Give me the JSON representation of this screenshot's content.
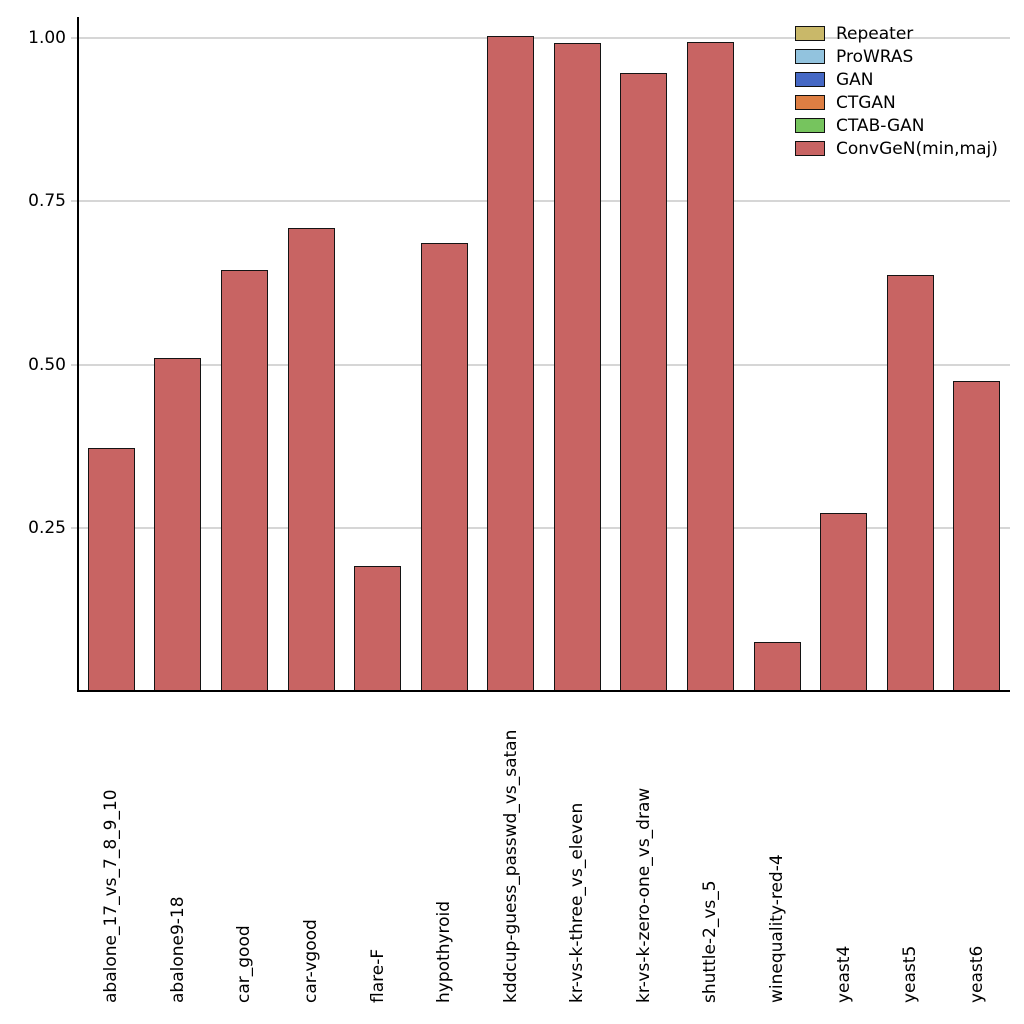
{
  "chart_data": {
    "type": "bar",
    "title": "",
    "xlabel": "",
    "ylabel": "",
    "categories": [
      "abalone_17_vs_7_8_9_10",
      "abalone9-18",
      "car_good",
      "car-vgood",
      "flare-F",
      "hypothyroid",
      "kddcup-guess_passwd_vs_satan",
      "kr-vs-k-three_vs_eleven",
      "kr-vs-k-zero-one_vs_draw",
      "shuttle-2_vs_5",
      "winequality-red-4",
      "yeast4",
      "yeast5",
      "yeast6"
    ],
    "series": [
      {
        "name": "ConvGeN(min,maj)",
        "color": "#c86463",
        "edge_color": "#141414",
        "values": [
          0.372,
          0.51,
          0.645,
          0.709,
          0.191,
          0.686,
          1.003,
          0.993,
          0.947,
          0.994,
          0.075,
          0.272,
          0.637,
          0.475
        ]
      }
    ],
    "ylim": [
      0,
      1.03
    ],
    "yticks": [
      {
        "value": 0.25,
        "label": "0.25"
      },
      {
        "value": 0.5,
        "label": "0.50"
      },
      {
        "value": 0.75,
        "label": "0.75"
      },
      {
        "value": 1.0,
        "label": "1.00"
      }
    ],
    "grid": {
      "horizontal": true,
      "color": "#d6d6d6"
    },
    "legend": {
      "position": "top-right",
      "entries": [
        {
          "label": "Repeater",
          "color": "#c9b869"
        },
        {
          "label": "ProWRAS",
          "color": "#92c3de"
        },
        {
          "label": "GAN",
          "color": "#4568c4"
        },
        {
          "label": "CTGAN",
          "color": "#dd7e43"
        },
        {
          "label": "CTAB-GAN",
          "color": "#76c45e"
        },
        {
          "label": "ConvGeN(min,maj)",
          "color": "#c86463"
        }
      ]
    }
  }
}
